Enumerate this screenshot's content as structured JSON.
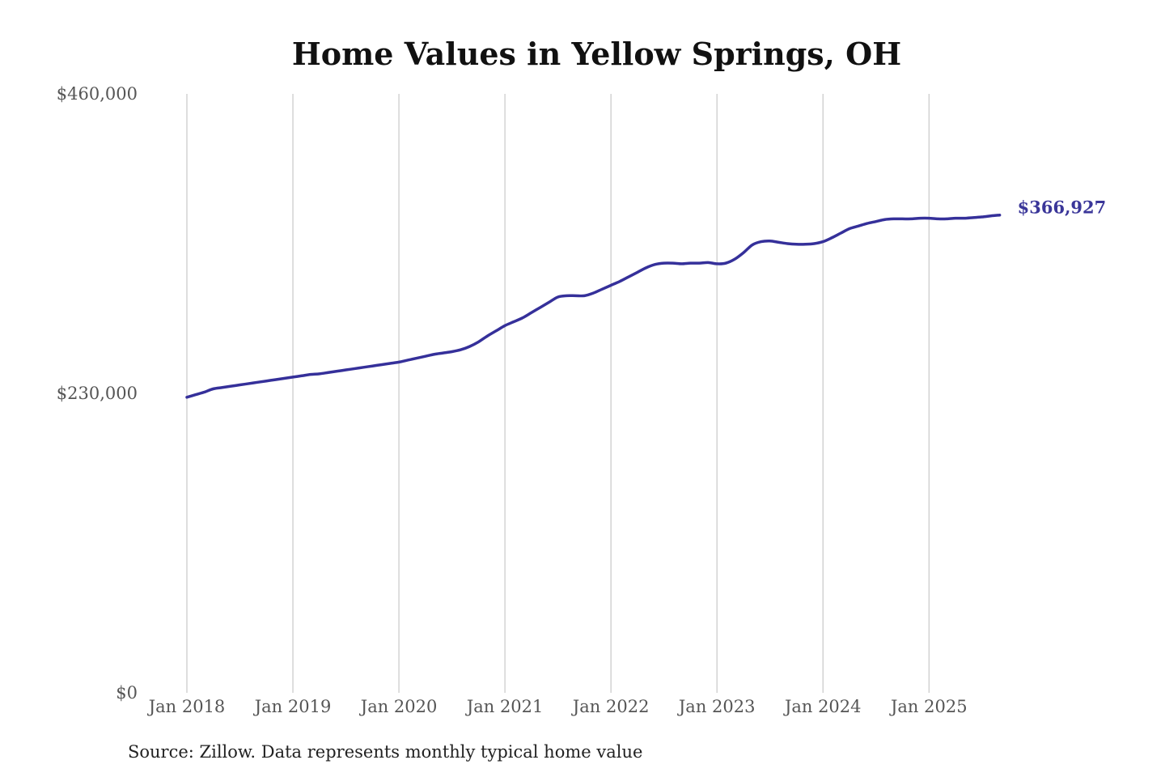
{
  "chart_data": {
    "type": "line",
    "title": "Home Values in Yellow Springs, OH",
    "source": "Source: Zillow. Data represents monthly typical home value",
    "xlabel": "",
    "ylabel": "",
    "ylim": [
      0,
      460000
    ],
    "y_ticks": [
      {
        "value": 460000,
        "label": "$460,000"
      },
      {
        "value": 230000,
        "label": "$230,000"
      },
      {
        "value": 0,
        "label": "$0"
      }
    ],
    "x_ticks": [
      {
        "month_index": 0,
        "label": "Jan 2018"
      },
      {
        "month_index": 12,
        "label": "Jan 2019"
      },
      {
        "month_index": 24,
        "label": "Jan 2020"
      },
      {
        "month_index": 36,
        "label": "Jan 2021"
      },
      {
        "month_index": 48,
        "label": "Jan 2022"
      },
      {
        "month_index": 60,
        "label": "Jan 2023"
      },
      {
        "month_index": 72,
        "label": "Jan 2024"
      },
      {
        "month_index": 84,
        "label": "Jan 2025"
      }
    ],
    "x_start": "Jan 2018",
    "x_unit": "month",
    "grid": "vertical",
    "series": [
      {
        "name": "Typical home value",
        "color": "#35309a",
        "end_label": "$366,927",
        "values": [
          227000,
          229000,
          231000,
          233500,
          234500,
          235500,
          236500,
          237500,
          238500,
          239500,
          240500,
          241500,
          242500,
          243500,
          244500,
          245000,
          246000,
          247000,
          248000,
          249000,
          250000,
          251000,
          252000,
          253000,
          254000,
          255500,
          257000,
          258500,
          260000,
          261000,
          262000,
          263500,
          266000,
          269500,
          274000,
          278000,
          282000,
          285000,
          288000,
          292000,
          296000,
          300000,
          304000,
          305000,
          305000,
          305000,
          307000,
          310000,
          313000,
          316000,
          319500,
          323000,
          326500,
          329000,
          330000,
          330000,
          329500,
          330000,
          330000,
          330500,
          329500,
          330000,
          333000,
          338000,
          344000,
          346500,
          347000,
          346000,
          345000,
          344500,
          344500,
          345000,
          346500,
          349500,
          353000,
          356500,
          358500,
          360500,
          362000,
          363500,
          364000,
          364000,
          364000,
          364500,
          364500,
          364000,
          364000,
          364500,
          364500,
          365000,
          365500,
          366300,
          366927
        ]
      }
    ]
  }
}
